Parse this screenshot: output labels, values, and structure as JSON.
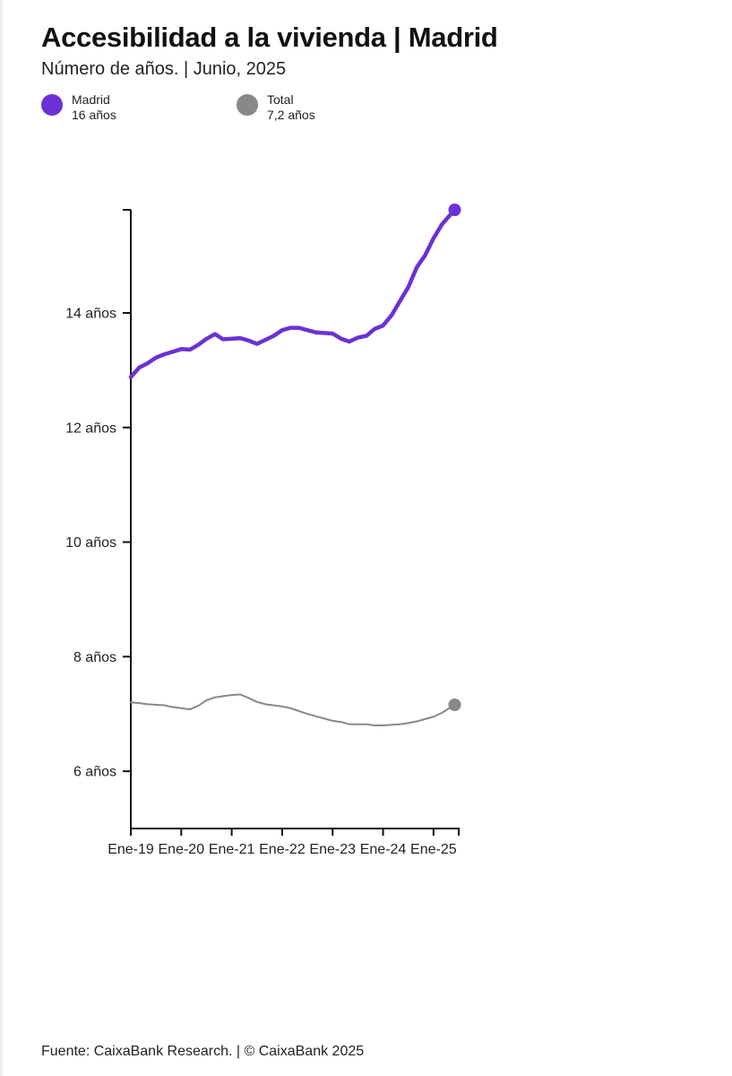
{
  "header": {
    "title": "Accesibilidad a la vivienda | Madrid",
    "subtitle": "Número de años. | Junio, 2025"
  },
  "legend": [
    {
      "name": "Madrid",
      "value": "16 años",
      "color": "#6a32d4"
    },
    {
      "name": "Total",
      "value": "7,2 años",
      "color": "#888888"
    }
  ],
  "footer": "Fuente: CaixaBank Research. | © CaixaBank 2025",
  "chart_data": {
    "type": "line",
    "title": "Accesibilidad a la vivienda | Madrid",
    "subtitle": "Número de años. | Junio, 2025",
    "xlabel": "",
    "ylabel": "",
    "xlim": [
      2019.0,
      2025.5
    ],
    "ylim": [
      5,
      15.8
    ],
    "yticks": [
      {
        "value": 6,
        "label": "6 años"
      },
      {
        "value": 8,
        "label": "8 años"
      },
      {
        "value": 10,
        "label": "10 años"
      },
      {
        "value": 12,
        "label": "12 años"
      },
      {
        "value": 14,
        "label": "14 años"
      }
    ],
    "xticks": [
      {
        "value": 2019,
        "label": "Ene-19"
      },
      {
        "value": 2020,
        "label": "Ene-20"
      },
      {
        "value": 2021,
        "label": "Ene-21"
      },
      {
        "value": 2022,
        "label": "Ene-22"
      },
      {
        "value": 2023,
        "label": "Ene-23"
      },
      {
        "value": 2024,
        "label": "Ene-24"
      },
      {
        "value": 2025,
        "label": "Ene-25"
      }
    ],
    "grid": false,
    "series": [
      {
        "name": "Madrid",
        "color": "#6a32d4",
        "x": [
          2019.0,
          2019.17,
          2019.33,
          2019.5,
          2019.67,
          2019.83,
          2020.0,
          2020.17,
          2020.33,
          2020.5,
          2020.67,
          2020.83,
          2021.0,
          2021.17,
          2021.33,
          2021.5,
          2021.67,
          2021.83,
          2022.0,
          2022.17,
          2022.33,
          2022.5,
          2022.67,
          2022.83,
          2023.0,
          2023.17,
          2023.33,
          2023.5,
          2023.67,
          2023.83,
          2024.0,
          2024.17,
          2024.33,
          2024.5,
          2024.67,
          2024.83,
          2025.0,
          2025.17,
          2025.42
        ],
        "values": [
          12.88,
          13.05,
          13.12,
          13.22,
          13.28,
          13.32,
          13.37,
          13.36,
          13.44,
          13.55,
          13.63,
          13.54,
          13.55,
          13.56,
          13.52,
          13.46,
          13.53,
          13.6,
          13.7,
          13.74,
          13.74,
          13.7,
          13.66,
          13.65,
          13.64,
          13.55,
          13.5,
          13.57,
          13.6,
          13.72,
          13.78,
          13.96,
          14.2,
          14.45,
          14.8,
          15.0,
          15.3,
          15.55,
          15.8
        ]
      },
      {
        "name": "Total",
        "color": "#888888",
        "x": [
          2019.0,
          2019.17,
          2019.33,
          2019.5,
          2019.67,
          2019.83,
          2020.0,
          2020.17,
          2020.33,
          2020.5,
          2020.67,
          2020.83,
          2021.0,
          2021.17,
          2021.33,
          2021.5,
          2021.67,
          2021.83,
          2022.0,
          2022.17,
          2022.33,
          2022.5,
          2022.67,
          2022.83,
          2023.0,
          2023.17,
          2023.33,
          2023.5,
          2023.67,
          2023.83,
          2024.0,
          2024.17,
          2024.33,
          2024.5,
          2024.67,
          2024.83,
          2025.0,
          2025.17,
          2025.42
        ],
        "values": [
          7.2,
          7.19,
          7.17,
          7.16,
          7.15,
          7.12,
          7.1,
          7.08,
          7.14,
          7.24,
          7.29,
          7.31,
          7.33,
          7.34,
          7.28,
          7.21,
          7.17,
          7.15,
          7.13,
          7.1,
          7.05,
          7.0,
          6.96,
          6.92,
          6.88,
          6.86,
          6.82,
          6.82,
          6.82,
          6.8,
          6.8,
          6.81,
          6.82,
          6.84,
          6.87,
          6.91,
          6.95,
          7.02,
          7.16
        ]
      }
    ]
  }
}
